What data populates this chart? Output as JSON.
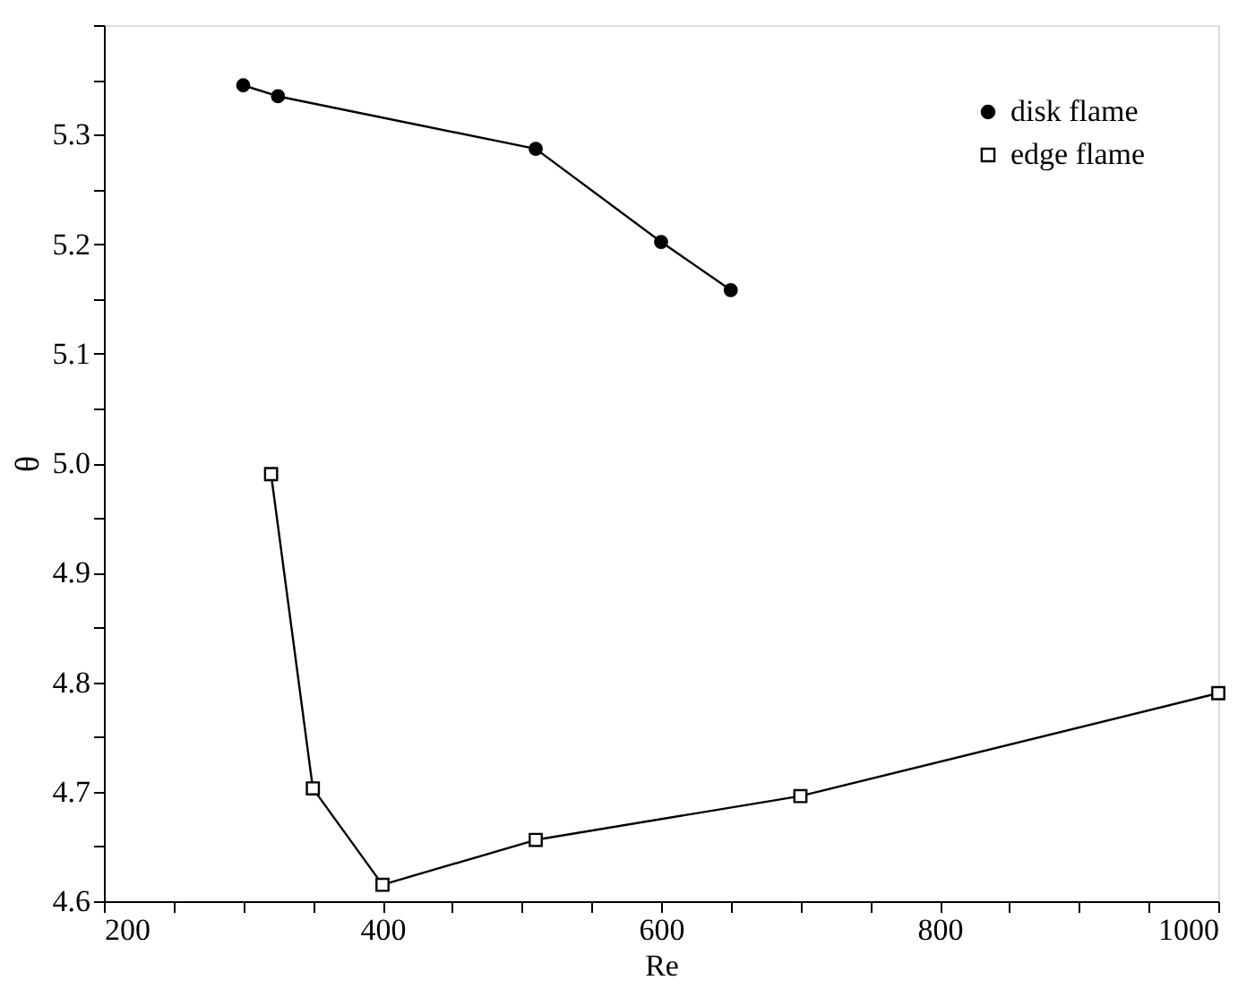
{
  "chart_data": {
    "type": "line",
    "xlabel": "Re",
    "ylabel": "θ",
    "xlim": [
      200,
      1000
    ],
    "ylim": [
      4.6,
      5.4
    ],
    "xticks": [
      200,
      {
        "value": 250,
        "label": null
      },
      {
        "value": 300,
        "label": null
      },
      {
        "value": 350,
        "label": null
      },
      400,
      {
        "value": 450,
        "label": null
      },
      {
        "value": 500,
        "label": null
      },
      {
        "value": 550,
        "label": null
      },
      600,
      {
        "value": 650,
        "label": null
      },
      {
        "value": 700,
        "label": null
      },
      {
        "value": 750,
        "label": null
      },
      800,
      {
        "value": 850,
        "label": null
      },
      {
        "value": 900,
        "label": null
      },
      {
        "value": 950,
        "label": null
      },
      1000
    ],
    "yticks": [
      4.6,
      {
        "value": 4.65,
        "label": null
      },
      4.7,
      {
        "value": 4.75,
        "label": null
      },
      4.8,
      {
        "value": 4.85,
        "label": null
      },
      4.9,
      {
        "value": 4.95,
        "label": null
      },
      {
        "value": 5.0,
        "label": "5.0"
      },
      {
        "value": 5.05,
        "label": null
      },
      5.1,
      {
        "value": 5.15,
        "label": null
      },
      5.2,
      {
        "value": 5.25,
        "label": null
      },
      5.3,
      {
        "value": 5.35,
        "label": null
      },
      {
        "value": 5.4,
        "label": null
      }
    ],
    "grid": false,
    "legend": "top right",
    "line_style": "solid",
    "series": [
      {
        "name": "disk flame",
        "color": "#000000",
        "marker": "circle",
        "x": [
          300,
          325,
          510,
          600,
          650
        ],
        "values": [
          5.345,
          5.335,
          5.287,
          5.202,
          5.158
        ]
      },
      {
        "name": "edge flame",
        "color": "#000000",
        "marker": "square",
        "x": [
          320,
          350,
          400,
          510,
          700,
          1000
        ],
        "values": [
          4.99,
          4.703,
          4.615,
          4.656,
          4.696,
          4.79
        ]
      }
    ]
  }
}
